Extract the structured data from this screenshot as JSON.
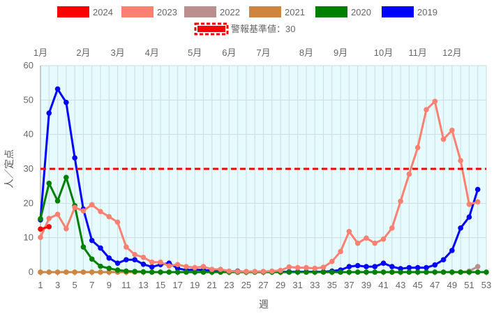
{
  "chart_data": {
    "type": "line",
    "xlabel": "週",
    "ylabel": "人／定点",
    "xlim": [
      1,
      53
    ],
    "ylim": [
      0,
      60
    ],
    "x_ticks": [
      1,
      3,
      5,
      7,
      9,
      11,
      13,
      15,
      17,
      19,
      21,
      23,
      25,
      27,
      29,
      31,
      33,
      35,
      37,
      39,
      41,
      43,
      45,
      47,
      49,
      51,
      53
    ],
    "y_ticks": [
      0,
      10,
      20,
      30,
      40,
      50,
      60
    ],
    "grid": true,
    "legend_position": "top",
    "plot_background": "#e6fbfd",
    "month_labels": [
      {
        "label": "1月",
        "week": 1
      },
      {
        "label": "2月",
        "week": 6
      },
      {
        "label": "3月",
        "week": 10
      },
      {
        "label": "4月",
        "week": 14
      },
      {
        "label": "5月",
        "week": 19
      },
      {
        "label": "6月",
        "week": 23
      },
      {
        "label": "7月",
        "week": 27
      },
      {
        "label": "8月",
        "week": 32
      },
      {
        "label": "9月",
        "week": 36
      },
      {
        "label": "10月",
        "week": 41
      },
      {
        "label": "11月",
        "week": 45
      },
      {
        "label": "12月",
        "week": 49
      }
    ],
    "threshold": {
      "name": "警報基準値：30",
      "value": 30,
      "color": "#ff0000"
    },
    "series": [
      {
        "name": "2024",
        "color": "#ff0000",
        "x": [
          1,
          2
        ],
        "y": [
          12.5,
          13.2
        ]
      },
      {
        "name": "2023",
        "color": "#fa8072",
        "x": [
          1,
          2,
          3,
          4,
          5,
          6,
          7,
          8,
          9,
          10,
          11,
          12,
          13,
          14,
          15,
          16,
          17,
          18,
          19,
          20,
          21,
          22,
          23,
          24,
          25,
          26,
          27,
          28,
          29,
          30,
          31,
          32,
          33,
          34,
          35,
          36,
          37,
          38,
          39,
          40,
          41,
          42,
          43,
          44,
          45,
          46,
          47,
          48,
          49,
          50,
          51,
          52
        ],
        "y": [
          10.1,
          15.6,
          16.8,
          12.6,
          18.8,
          17.8,
          19.6,
          17.6,
          16.1,
          14.5,
          7.3,
          5.1,
          4.3,
          2.9,
          2.9,
          1.8,
          2.2,
          1.6,
          1.3,
          1.6,
          0.8,
          0.8,
          0.3,
          0.2,
          0.2,
          0.2,
          0.2,
          0.3,
          0.5,
          1.5,
          1.3,
          1.3,
          1.1,
          1.4,
          3.1,
          6.0,
          11.8,
          8.4,
          9.9,
          8.4,
          9.6,
          12.8,
          20.6,
          28.5,
          36.2,
          47.2,
          49.6,
          38.6,
          41.2,
          32.4,
          19.7,
          20.4
        ]
      },
      {
        "name": "2022",
        "color": "#bc8f8f",
        "x": [
          1,
          2,
          3,
          4,
          5,
          6,
          7,
          8,
          9,
          10,
          11,
          12,
          13,
          14,
          15,
          16,
          17,
          18,
          19,
          20,
          21,
          22,
          23,
          24,
          25,
          26,
          27,
          28,
          29,
          30,
          31,
          32,
          33,
          34,
          35,
          36,
          37,
          38,
          39,
          40,
          41,
          42,
          43,
          44,
          45,
          46,
          47,
          48,
          49,
          50,
          51,
          52
        ],
        "y": [
          0,
          0,
          0,
          0,
          0,
          0,
          0,
          0,
          0,
          0,
          0,
          0,
          0,
          0,
          0,
          0,
          0,
          0,
          0,
          0,
          0,
          0,
          0,
          0,
          0,
          0,
          0,
          0,
          0,
          0,
          0,
          0,
          0,
          0,
          0,
          0,
          0,
          0,
          0,
          0,
          0,
          0,
          0,
          0,
          0,
          0,
          0,
          0,
          0,
          0,
          0.3,
          1.6
        ]
      },
      {
        "name": "2021",
        "color": "#cd853f",
        "x": [
          1,
          2,
          3,
          4,
          5,
          6,
          7,
          8,
          9,
          10,
          11,
          12,
          13,
          14,
          15,
          16,
          17,
          18,
          19,
          20,
          21,
          22,
          23,
          24,
          25,
          26,
          27,
          28,
          29,
          30,
          31,
          32,
          33,
          34,
          35,
          36,
          37,
          38,
          39,
          40,
          41,
          42,
          43,
          44,
          45,
          46,
          47,
          48,
          49,
          50,
          51,
          52
        ],
        "y": [
          0,
          0,
          0,
          0,
          0,
          0,
          0,
          0,
          0,
          0,
          0,
          0,
          0,
          0,
          0,
          0,
          0,
          0,
          0,
          0,
          0,
          0,
          0,
          0,
          0,
          0,
          0,
          0,
          0,
          0,
          0,
          0,
          0,
          0,
          0,
          0,
          0,
          0,
          0,
          0,
          0,
          0,
          0,
          0,
          0,
          0,
          0,
          0,
          0,
          0,
          0,
          0
        ]
      },
      {
        "name": "2020",
        "color": "#008000",
        "x": [
          1,
          2,
          3,
          4,
          5,
          6,
          7,
          8,
          9,
          10,
          11,
          12,
          13,
          14,
          15,
          16,
          17,
          18,
          19,
          20,
          21,
          22,
          23,
          24,
          25,
          26,
          27,
          28,
          29,
          30,
          31,
          32,
          33,
          34,
          35,
          36,
          37,
          38,
          39,
          40,
          41,
          42,
          43,
          44,
          45,
          46,
          47,
          48,
          49,
          50,
          51,
          52,
          53
        ],
        "y": [
          15.5,
          25.8,
          20.7,
          27.5,
          19.3,
          7.3,
          3.8,
          1.7,
          1.1,
          0.6,
          0.3,
          0.2,
          0.1,
          0,
          0,
          0,
          0,
          0,
          0,
          0,
          0,
          0,
          0,
          0,
          0,
          0,
          0,
          0,
          0,
          0,
          0,
          0,
          0,
          0,
          0,
          0,
          0,
          0,
          0,
          0,
          0,
          0,
          0,
          0,
          0,
          0,
          0,
          0,
          0,
          0,
          0,
          0,
          0
        ]
      },
      {
        "name": "2019",
        "color": "#0000ff",
        "x": [
          1,
          2,
          3,
          4,
          5,
          6,
          7,
          8,
          9,
          10,
          11,
          12,
          13,
          14,
          15,
          16,
          17,
          18,
          19,
          20,
          21,
          22,
          23,
          24,
          25,
          26,
          27,
          28,
          29,
          30,
          31,
          32,
          33,
          34,
          35,
          36,
          37,
          38,
          39,
          40,
          41,
          42,
          43,
          44,
          45,
          46,
          47,
          48,
          49,
          50,
          51,
          52
        ],
        "y": [
          15.2,
          46.2,
          53.2,
          49.3,
          33.2,
          18.3,
          9.2,
          7.0,
          4.1,
          2.6,
          3.6,
          3.6,
          2.3,
          1.5,
          2.2,
          2.6,
          1.1,
          0.6,
          0.7,
          0.6,
          0.4,
          0.3,
          0.2,
          0.3,
          0.1,
          0.1,
          0.1,
          0.1,
          0.1,
          0.1,
          0.1,
          0.1,
          0.1,
          0.1,
          0.3,
          0.6,
          1.6,
          1.9,
          1.6,
          1.6,
          2.6,
          1.6,
          1.0,
          1.3,
          1.3,
          1.3,
          2.1,
          3.6,
          6.3,
          12.8,
          16.0,
          24.0
        ]
      }
    ]
  }
}
